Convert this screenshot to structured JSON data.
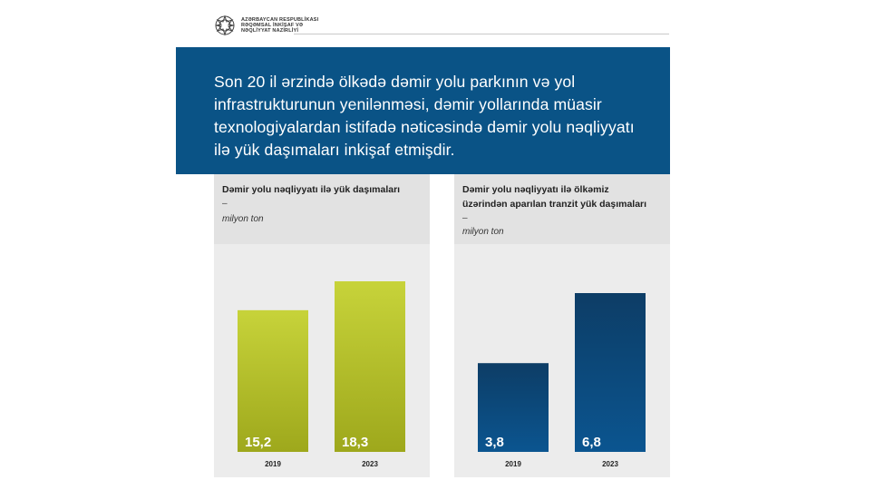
{
  "header": {
    "ministry_name": "AZƏRBAYCAN RESPUBLİKASI RƏQƏMSAL İNKİŞAF VƏ NƏQLİYYAT NAZİRLİYİ"
  },
  "banner": {
    "text": "Son 20 il ərzində ölkədə dəmir yolu parkının və yol infrastrukturunun yenilənməsi, dəmir yollarında müasir texnologiyalardan istifadə nəticəsində dəmir yolu nəqliyyatı ilə yük daşımaları inkişaf etmişdir."
  },
  "chart_data": [
    {
      "type": "bar",
      "title_lines": [
        "Dəmir yolu nəqliyyatı ilə yük daşımaları"
      ],
      "dash": "–",
      "unit": "milyon ton",
      "categories": [
        "2019",
        "2023"
      ],
      "values": [
        15.2,
        18.3
      ],
      "value_labels": [
        "15,2",
        "18,3"
      ],
      "colors": {
        "bar_top": "#c7d33a",
        "bar_bottom": "#9ea81c"
      }
    },
    {
      "type": "bar",
      "title_lines": [
        "Dəmir yolu nəqliyyatı ilə ölkəmiz",
        "üzərindən aparılan tranzit yük daşımaları"
      ],
      "dash": "–",
      "unit": "milyon ton",
      "categories": [
        "2019",
        "2023"
      ],
      "values": [
        3.8,
        6.8
      ],
      "value_labels": [
        "3,8",
        "6,8"
      ],
      "colors": {
        "bar_top": "#0d3d66",
        "bar_bottom": "#0b5590"
      }
    }
  ]
}
